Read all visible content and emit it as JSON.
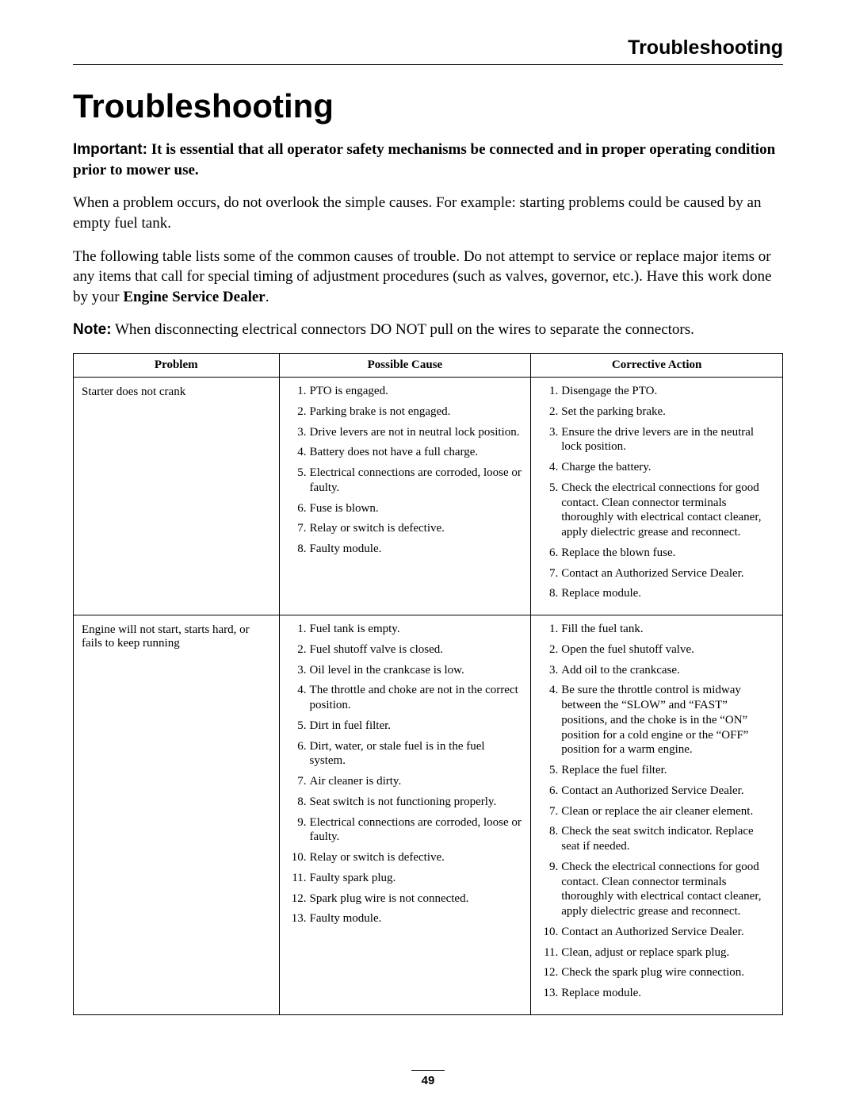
{
  "header": {
    "running_head": "Troubleshooting"
  },
  "title": "Troubleshooting",
  "important": {
    "label": "Important:",
    "text": "It is essential that all operator safety mechanisms be connected and in proper operating condition prior to mower use."
  },
  "paragraphs": {
    "p1": "When a problem occurs, do not overlook the simple causes. For example: starting problems could be caused by an empty fuel tank.",
    "p2_a": "The following table lists some of the common causes of trouble. Do not attempt to service or replace major items or any items that call for special timing of adjustment procedures (such as valves, governor, etc.). Have this work done by your ",
    "p2_bold": "Engine Service Dealer",
    "p2_b": "."
  },
  "note": {
    "label": "Note:",
    "text": "When disconnecting electrical connectors DO NOT pull on the wires to separate the connectors."
  },
  "table": {
    "headers": {
      "problem": "Problem",
      "cause": "Possible Cause",
      "action": "Corrective Action"
    },
    "rows": [
      {
        "problem": "Starter does not crank",
        "causes": [
          "PTO is engaged.",
          "Parking brake is not engaged.",
          "Drive levers are not in neutral lock position.",
          "Battery does not have a full charge.",
          "Electrical connections are corroded, loose or faulty.",
          "Fuse is blown.",
          "Relay or switch is defective.",
          "Faulty module."
        ],
        "actions": [
          "Disengage the PTO.",
          "Set the parking brake.",
          "Ensure the drive levers are in the neutral lock position.",
          "Charge the battery.",
          "Check the electrical connections for good contact. Clean connector terminals thoroughly with electrical contact cleaner, apply dielectric grease and reconnect.",
          "Replace the blown fuse.",
          "Contact an Authorized Service Dealer.",
          "Replace module."
        ]
      },
      {
        "problem": "Engine will not start, starts hard, or fails to keep running",
        "causes": [
          "Fuel tank is empty.",
          "Fuel shutoff valve is closed.",
          "Oil level in the crankcase is low.",
          "The throttle and choke are not in the correct position.",
          "Dirt in fuel filter.",
          "Dirt, water, or stale fuel is in the fuel system.",
          "Air cleaner is dirty.",
          "Seat switch is not functioning properly.",
          "Electrical connections are corroded, loose or faulty.",
          "Relay or switch is defective.",
          "Faulty spark plug.",
          "Spark plug wire is not connected.",
          "Faulty module."
        ],
        "actions": [
          "Fill the fuel tank.",
          "Open the fuel shutoff valve.",
          "Add oil to the crankcase.",
          "Be sure the throttle control is midway between the “SLOW” and “FAST” positions, and the choke is in the “ON” position for a cold engine or the “OFF” position for a warm engine.",
          "Replace the fuel filter.",
          "Contact an Authorized Service Dealer.",
          "Clean or replace the air cleaner element.",
          "Check the seat switch indicator. Replace seat if needed.",
          "Check the electrical connections for good contact. Clean connector terminals thoroughly with electrical contact cleaner, apply dielectric grease and reconnect.",
          "Contact an Authorized Service Dealer.",
          "Clean, adjust or replace spark plug.",
          "Check the spark plug wire connection.",
          "Replace module."
        ]
      }
    ]
  },
  "page_number": "49"
}
